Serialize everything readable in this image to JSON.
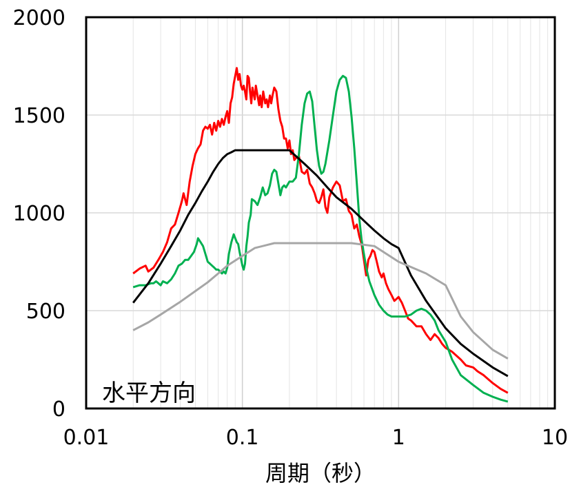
{
  "chart_data": {
    "type": "line",
    "xscale": "log",
    "xlim": [
      0.01,
      10
    ],
    "ylim": [
      0,
      2000
    ],
    "grid": true,
    "xlabel": "周期（秒）",
    "ylabel": "",
    "annotation": "水平方向",
    "x_ticks": [
      {
        "value": 0.01,
        "label": "0.01"
      },
      {
        "value": 0.1,
        "label": "0.1"
      },
      {
        "value": 1,
        "label": "1"
      },
      {
        "value": 10,
        "label": "10"
      }
    ],
    "y_ticks": [
      {
        "value": 0,
        "label": "0"
      },
      {
        "value": 500,
        "label": "500"
      },
      {
        "value": 1000,
        "label": "1000"
      },
      {
        "value": 1500,
        "label": "1500"
      },
      {
        "value": 2000,
        "label": "2000"
      }
    ],
    "series": [
      {
        "color": "#ff0000",
        "points": [
          [
            0.02,
            690
          ],
          [
            0.022,
            715
          ],
          [
            0.024,
            730
          ],
          [
            0.025,
            700
          ],
          [
            0.027,
            720
          ],
          [
            0.029,
            760
          ],
          [
            0.031,
            800
          ],
          [
            0.033,
            850
          ],
          [
            0.035,
            920
          ],
          [
            0.037,
            940
          ],
          [
            0.039,
            1000
          ],
          [
            0.041,
            1060
          ],
          [
            0.042,
            1100
          ],
          [
            0.044,
            1040
          ],
          [
            0.046,
            1160
          ],
          [
            0.048,
            1240
          ],
          [
            0.05,
            1300
          ],
          [
            0.052,
            1330
          ],
          [
            0.054,
            1350
          ],
          [
            0.056,
            1420
          ],
          [
            0.058,
            1440
          ],
          [
            0.06,
            1430
          ],
          [
            0.062,
            1450
          ],
          [
            0.064,
            1400
          ],
          [
            0.066,
            1460
          ],
          [
            0.068,
            1420
          ],
          [
            0.07,
            1470
          ],
          [
            0.072,
            1440
          ],
          [
            0.074,
            1480
          ],
          [
            0.076,
            1450
          ],
          [
            0.078,
            1490
          ],
          [
            0.08,
            1520
          ],
          [
            0.082,
            1460
          ],
          [
            0.084,
            1560
          ],
          [
            0.086,
            1590
          ],
          [
            0.088,
            1660
          ],
          [
            0.09,
            1700
          ],
          [
            0.092,
            1740
          ],
          [
            0.094,
            1680
          ],
          [
            0.096,
            1710
          ],
          [
            0.098,
            1650
          ],
          [
            0.1,
            1630
          ],
          [
            0.102,
            1650
          ],
          [
            0.104,
            1620
          ],
          [
            0.106,
            1580
          ],
          [
            0.108,
            1700
          ],
          [
            0.11,
            1690
          ],
          [
            0.112,
            1620
          ],
          [
            0.114,
            1560
          ],
          [
            0.116,
            1640
          ],
          [
            0.12,
            1580
          ],
          [
            0.122,
            1650
          ],
          [
            0.125,
            1600
          ],
          [
            0.128,
            1550
          ],
          [
            0.13,
            1600
          ],
          [
            0.133,
            1540
          ],
          [
            0.136,
            1620
          ],
          [
            0.14,
            1560
          ],
          [
            0.143,
            1580
          ],
          [
            0.146,
            1540
          ],
          [
            0.15,
            1600
          ],
          [
            0.153,
            1560
          ],
          [
            0.156,
            1600
          ],
          [
            0.16,
            1640
          ],
          [
            0.165,
            1620
          ],
          [
            0.17,
            1530
          ],
          [
            0.175,
            1470
          ],
          [
            0.18,
            1440
          ],
          [
            0.185,
            1380
          ],
          [
            0.19,
            1380
          ],
          [
            0.195,
            1330
          ],
          [
            0.2,
            1370
          ],
          [
            0.205,
            1300
          ],
          [
            0.21,
            1320
          ],
          [
            0.215,
            1270
          ],
          [
            0.22,
            1280
          ],
          [
            0.23,
            1290
          ],
          [
            0.24,
            1210
          ],
          [
            0.25,
            1200
          ],
          [
            0.26,
            1220
          ],
          [
            0.27,
            1150
          ],
          [
            0.28,
            1130
          ],
          [
            0.29,
            1100
          ],
          [
            0.3,
            1060
          ],
          [
            0.31,
            1050
          ],
          [
            0.32,
            1080
          ],
          [
            0.33,
            1120
          ],
          [
            0.34,
            1030
          ],
          [
            0.35,
            1000
          ],
          [
            0.36,
            1080
          ],
          [
            0.38,
            1130
          ],
          [
            0.4,
            1160
          ],
          [
            0.42,
            1140
          ],
          [
            0.44,
            1060
          ],
          [
            0.46,
            1070
          ],
          [
            0.48,
            1010
          ],
          [
            0.5,
            990
          ],
          [
            0.52,
            920
          ],
          [
            0.54,
            940
          ],
          [
            0.56,
            880
          ],
          [
            0.58,
            840
          ],
          [
            0.6,
            760
          ],
          [
            0.62,
            680
          ],
          [
            0.64,
            760
          ],
          [
            0.66,
            780
          ],
          [
            0.68,
            810
          ],
          [
            0.7,
            800
          ],
          [
            0.72,
            760
          ],
          [
            0.75,
            700
          ],
          [
            0.78,
            670
          ],
          [
            0.8,
            690
          ],
          [
            0.83,
            640
          ],
          [
            0.86,
            610
          ],
          [
            0.9,
            580
          ],
          [
            0.94,
            550
          ],
          [
            1.0,
            570
          ],
          [
            1.05,
            540
          ],
          [
            1.1,
            500
          ],
          [
            1.15,
            460
          ],
          [
            1.2,
            450
          ],
          [
            1.3,
            420
          ],
          [
            1.4,
            420
          ],
          [
            1.5,
            380
          ],
          [
            1.6,
            350
          ],
          [
            1.7,
            380
          ],
          [
            1.8,
            360
          ],
          [
            1.9,
            330
          ],
          [
            2.0,
            310
          ],
          [
            2.2,
            290
          ],
          [
            2.5,
            250
          ],
          [
            2.7,
            220
          ],
          [
            3.0,
            210
          ],
          [
            3.2,
            190
          ],
          [
            3.5,
            170
          ],
          [
            4.0,
            130
          ],
          [
            4.5,
            100
          ],
          [
            5.0,
            80
          ]
        ]
      },
      {
        "color": "#00b050",
        "points": [
          [
            0.02,
            620
          ],
          [
            0.022,
            630
          ],
          [
            0.024,
            630
          ],
          [
            0.026,
            640
          ],
          [
            0.027,
            640
          ],
          [
            0.028,
            650
          ],
          [
            0.029,
            640
          ],
          [
            0.03,
            630
          ],
          [
            0.031,
            650
          ],
          [
            0.033,
            640
          ],
          [
            0.035,
            660
          ],
          [
            0.037,
            690
          ],
          [
            0.039,
            730
          ],
          [
            0.041,
            740
          ],
          [
            0.043,
            760
          ],
          [
            0.045,
            760
          ],
          [
            0.047,
            780
          ],
          [
            0.049,
            800
          ],
          [
            0.051,
            840
          ],
          [
            0.052,
            870
          ],
          [
            0.054,
            850
          ],
          [
            0.056,
            830
          ],
          [
            0.058,
            790
          ],
          [
            0.06,
            750
          ],
          [
            0.062,
            740
          ],
          [
            0.064,
            730
          ],
          [
            0.066,
            720
          ],
          [
            0.068,
            710
          ],
          [
            0.07,
            710
          ],
          [
            0.072,
            700
          ],
          [
            0.074,
            690
          ],
          [
            0.076,
            700
          ],
          [
            0.078,
            690
          ],
          [
            0.08,
            720
          ],
          [
            0.082,
            790
          ],
          [
            0.085,
            850
          ],
          [
            0.088,
            890
          ],
          [
            0.09,
            870
          ],
          [
            0.092,
            850
          ],
          [
            0.094,
            840
          ],
          [
            0.096,
            800
          ],
          [
            0.1,
            730
          ],
          [
            0.102,
            710
          ],
          [
            0.104,
            740
          ],
          [
            0.106,
            830
          ],
          [
            0.108,
            880
          ],
          [
            0.11,
            950
          ],
          [
            0.113,
            990
          ],
          [
            0.115,
            1070
          ],
          [
            0.12,
            1060
          ],
          [
            0.125,
            1040
          ],
          [
            0.13,
            1080
          ],
          [
            0.135,
            1130
          ],
          [
            0.14,
            1090
          ],
          [
            0.145,
            1100
          ],
          [
            0.15,
            1140
          ],
          [
            0.155,
            1200
          ],
          [
            0.16,
            1220
          ],
          [
            0.165,
            1210
          ],
          [
            0.17,
            1150
          ],
          [
            0.175,
            1090
          ],
          [
            0.18,
            1130
          ],
          [
            0.185,
            1140
          ],
          [
            0.19,
            1130
          ],
          [
            0.2,
            1160
          ],
          [
            0.21,
            1160
          ],
          [
            0.22,
            1180
          ],
          [
            0.23,
            1300
          ],
          [
            0.24,
            1450
          ],
          [
            0.25,
            1560
          ],
          [
            0.26,
            1610
          ],
          [
            0.27,
            1620
          ],
          [
            0.28,
            1570
          ],
          [
            0.29,
            1440
          ],
          [
            0.3,
            1320
          ],
          [
            0.31,
            1240
          ],
          [
            0.32,
            1200
          ],
          [
            0.33,
            1210
          ],
          [
            0.34,
            1250
          ],
          [
            0.36,
            1370
          ],
          [
            0.38,
            1500
          ],
          [
            0.4,
            1620
          ],
          [
            0.42,
            1680
          ],
          [
            0.44,
            1700
          ],
          [
            0.46,
            1690
          ],
          [
            0.48,
            1620
          ],
          [
            0.5,
            1490
          ],
          [
            0.52,
            1330
          ],
          [
            0.54,
            1150
          ],
          [
            0.56,
            970
          ],
          [
            0.58,
            860
          ],
          [
            0.6,
            790
          ],
          [
            0.62,
            720
          ],
          [
            0.65,
            650
          ],
          [
            0.7,
            580
          ],
          [
            0.75,
            530
          ],
          [
            0.8,
            500
          ],
          [
            0.85,
            480
          ],
          [
            0.9,
            470
          ],
          [
            1.0,
            470
          ],
          [
            1.1,
            470
          ],
          [
            1.2,
            480
          ],
          [
            1.3,
            500
          ],
          [
            1.4,
            510
          ],
          [
            1.5,
            500
          ],
          [
            1.6,
            480
          ],
          [
            1.7,
            450
          ],
          [
            1.8,
            400
          ],
          [
            2.0,
            340
          ],
          [
            2.2,
            250
          ],
          [
            2.5,
            170
          ],
          [
            3.0,
            120
          ],
          [
            3.5,
            80
          ],
          [
            4.0,
            60
          ],
          [
            4.5,
            45
          ],
          [
            5.0,
            35
          ]
        ]
      },
      {
        "color": "#000000",
        "points": [
          [
            0.02,
            540
          ],
          [
            0.025,
            640
          ],
          [
            0.03,
            740
          ],
          [
            0.035,
            830
          ],
          [
            0.04,
            910
          ],
          [
            0.045,
            990
          ],
          [
            0.05,
            1050
          ],
          [
            0.055,
            1110
          ],
          [
            0.06,
            1160
          ],
          [
            0.065,
            1210
          ],
          [
            0.07,
            1250
          ],
          [
            0.075,
            1280
          ],
          [
            0.08,
            1300
          ],
          [
            0.085,
            1310
          ],
          [
            0.09,
            1320
          ],
          [
            0.2,
            1320
          ],
          [
            0.25,
            1250
          ],
          [
            0.3,
            1190
          ],
          [
            0.35,
            1130
          ],
          [
            0.4,
            1080
          ],
          [
            0.5,
            1020
          ],
          [
            0.6,
            960
          ],
          [
            0.7,
            910
          ],
          [
            0.8,
            870
          ],
          [
            0.9,
            840
          ],
          [
            1.0,
            820
          ],
          [
            1.2,
            680
          ],
          [
            1.5,
            550
          ],
          [
            2.0,
            410
          ],
          [
            2.5,
            330
          ],
          [
            3.0,
            280
          ],
          [
            4.0,
            210
          ],
          [
            5.0,
            165
          ]
        ]
      },
      {
        "color": "#a6a6a6",
        "points": [
          [
            0.02,
            400
          ],
          [
            0.025,
            440
          ],
          [
            0.03,
            480
          ],
          [
            0.04,
            545
          ],
          [
            0.05,
            600
          ],
          [
            0.06,
            645
          ],
          [
            0.07,
            690
          ],
          [
            0.08,
            730
          ],
          [
            0.1,
            780
          ],
          [
            0.12,
            820
          ],
          [
            0.16,
            845
          ],
          [
            0.3,
            845
          ],
          [
            0.5,
            845
          ],
          [
            0.7,
            830
          ],
          [
            1.0,
            750
          ],
          [
            1.5,
            690
          ],
          [
            2.0,
            630
          ],
          [
            2.5,
            470
          ],
          [
            3.0,
            390
          ],
          [
            4.0,
            300
          ],
          [
            5.0,
            255
          ]
        ]
      }
    ]
  }
}
